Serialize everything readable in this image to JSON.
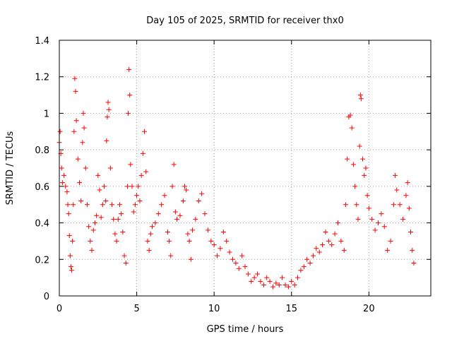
{
  "chart_data": {
    "type": "scatter",
    "title": "Day 105 of 2025, SRMTID for receiver thx0",
    "xlabel": "GPS time / hours",
    "ylabel": "SRMTID / TECUs",
    "xlim": [
      0,
      24
    ],
    "ylim": [
      0,
      1.4
    ],
    "x_ticks": [
      0,
      5,
      10,
      15,
      20
    ],
    "y_ticks": [
      0,
      0.2,
      0.4,
      0.6,
      0.8,
      1,
      1.2,
      1.4
    ],
    "x_tick_labels": [
      "0",
      "5",
      "10",
      "15",
      "20"
    ],
    "y_tick_labels": [
      "0",
      "0.2",
      "0.4",
      "0.6",
      "0.8",
      "1",
      "1.2",
      "1.4"
    ],
    "grid": true,
    "marker": "+",
    "color": "#ff0000",
    "series": [
      {
        "name": "SRMTID",
        "points": [
          [
            0.0,
            0.84
          ],
          [
            0.05,
            0.9
          ],
          [
            0.1,
            0.78
          ],
          [
            0.15,
            0.7
          ],
          [
            0.2,
            0.62
          ],
          [
            0.3,
            0.66
          ],
          [
            0.4,
            0.6
          ],
          [
            0.5,
            0.57
          ],
          [
            0.55,
            0.5
          ],
          [
            0.6,
            0.45
          ],
          [
            0.65,
            0.33
          ],
          [
            0.7,
            0.22
          ],
          [
            0.75,
            0.16
          ],
          [
            0.8,
            0.14
          ],
          [
            0.85,
            0.3
          ],
          [
            0.9,
            0.5
          ],
          [
            0.95,
            0.9
          ],
          [
            1.0,
            1.19
          ],
          [
            1.05,
            1.12
          ],
          [
            1.1,
            0.96
          ],
          [
            1.2,
            0.75
          ],
          [
            1.3,
            0.62
          ],
          [
            1.4,
            0.52
          ],
          [
            1.5,
            0.84
          ],
          [
            1.55,
            1.0
          ],
          [
            1.6,
            0.92
          ],
          [
            1.7,
            0.7
          ],
          [
            1.8,
            0.5
          ],
          [
            1.9,
            0.38
          ],
          [
            2.0,
            0.3
          ],
          [
            2.1,
            0.25
          ],
          [
            2.2,
            0.36
          ],
          [
            2.3,
            0.4
          ],
          [
            2.4,
            0.44
          ],
          [
            2.5,
            0.66
          ],
          [
            2.6,
            0.58
          ],
          [
            2.7,
            0.43
          ],
          [
            2.8,
            0.5
          ],
          [
            2.9,
            0.6
          ],
          [
            3.0,
            0.52
          ],
          [
            3.05,
            0.85
          ],
          [
            3.1,
            0.98
          ],
          [
            3.15,
            1.06
          ],
          [
            3.2,
            1.02
          ],
          [
            3.3,
            0.7
          ],
          [
            3.4,
            0.5
          ],
          [
            3.5,
            0.42
          ],
          [
            3.6,
            0.34
          ],
          [
            3.7,
            0.3
          ],
          [
            3.8,
            0.42
          ],
          [
            3.9,
            0.5
          ],
          [
            4.0,
            0.45
          ],
          [
            4.1,
            0.35
          ],
          [
            4.2,
            0.22
          ],
          [
            4.3,
            0.18
          ],
          [
            4.4,
            0.6
          ],
          [
            4.45,
            1.0
          ],
          [
            4.5,
            1.24
          ],
          [
            4.55,
            1.1
          ],
          [
            4.6,
            0.72
          ],
          [
            4.7,
            0.6
          ],
          [
            4.8,
            0.46
          ],
          [
            4.9,
            0.5
          ],
          [
            5.0,
            0.55
          ],
          [
            5.1,
            0.6
          ],
          [
            5.2,
            0.52
          ],
          [
            5.3,
            0.66
          ],
          [
            5.4,
            0.78
          ],
          [
            5.5,
            0.9
          ],
          [
            5.6,
            0.68
          ],
          [
            5.7,
            0.3
          ],
          [
            5.8,
            0.25
          ],
          [
            5.9,
            0.34
          ],
          [
            6.0,
            0.38
          ],
          [
            6.2,
            0.4
          ],
          [
            6.4,
            0.45
          ],
          [
            6.6,
            0.5
          ],
          [
            6.8,
            0.55
          ],
          [
            7.0,
            0.35
          ],
          [
            7.1,
            0.3
          ],
          [
            7.2,
            0.22
          ],
          [
            7.3,
            0.6
          ],
          [
            7.4,
            0.72
          ],
          [
            7.5,
            0.46
          ],
          [
            7.6,
            0.42
          ],
          [
            7.8,
            0.44
          ],
          [
            8.0,
            0.52
          ],
          [
            8.1,
            0.6
          ],
          [
            8.2,
            0.58
          ],
          [
            8.3,
            0.34
          ],
          [
            8.4,
            0.3
          ],
          [
            8.5,
            0.2
          ],
          [
            8.6,
            0.36
          ],
          [
            8.8,
            0.42
          ],
          [
            9.0,
            0.52
          ],
          [
            9.2,
            0.56
          ],
          [
            9.4,
            0.45
          ],
          [
            9.6,
            0.36
          ],
          [
            9.8,
            0.3
          ],
          [
            10.0,
            0.28
          ],
          [
            10.2,
            0.22
          ],
          [
            10.4,
            0.26
          ],
          [
            10.6,
            0.35
          ],
          [
            10.8,
            0.3
          ],
          [
            11.0,
            0.24
          ],
          [
            11.2,
            0.2
          ],
          [
            11.4,
            0.18
          ],
          [
            11.6,
            0.15
          ],
          [
            11.8,
            0.22
          ],
          [
            12.0,
            0.16
          ],
          [
            12.2,
            0.12
          ],
          [
            12.4,
            0.08
          ],
          [
            12.6,
            0.1
          ],
          [
            12.8,
            0.12
          ],
          [
            13.0,
            0.08
          ],
          [
            13.2,
            0.06
          ],
          [
            13.4,
            0.1
          ],
          [
            13.6,
            0.08
          ],
          [
            13.8,
            0.05
          ],
          [
            14.0,
            0.07
          ],
          [
            14.2,
            0.06
          ],
          [
            14.4,
            0.1
          ],
          [
            14.6,
            0.06
          ],
          [
            14.8,
            0.05
          ],
          [
            15.0,
            0.08
          ],
          [
            15.2,
            0.06
          ],
          [
            15.4,
            0.1
          ],
          [
            15.6,
            0.14
          ],
          [
            15.8,
            0.16
          ],
          [
            16.0,
            0.2
          ],
          [
            16.2,
            0.18
          ],
          [
            16.4,
            0.22
          ],
          [
            16.6,
            0.26
          ],
          [
            16.8,
            0.24
          ],
          [
            17.0,
            0.28
          ],
          [
            17.2,
            0.35
          ],
          [
            17.4,
            0.3
          ],
          [
            17.6,
            0.28
          ],
          [
            17.8,
            0.34
          ],
          [
            18.0,
            0.4
          ],
          [
            18.2,
            0.3
          ],
          [
            18.4,
            0.25
          ],
          [
            18.5,
            0.5
          ],
          [
            18.6,
            0.75
          ],
          [
            18.7,
            0.98
          ],
          [
            18.8,
            0.99
          ],
          [
            18.9,
            0.92
          ],
          [
            19.0,
            0.72
          ],
          [
            19.1,
            0.6
          ],
          [
            19.2,
            0.5
          ],
          [
            19.3,
            0.42
          ],
          [
            19.4,
            0.82
          ],
          [
            19.45,
            1.1
          ],
          [
            19.5,
            1.08
          ],
          [
            19.6,
            0.75
          ],
          [
            19.7,
            0.66
          ],
          [
            19.8,
            0.7
          ],
          [
            19.9,
            0.55
          ],
          [
            20.0,
            0.48
          ],
          [
            20.2,
            0.42
          ],
          [
            20.4,
            0.36
          ],
          [
            20.6,
            0.4
          ],
          [
            20.8,
            0.45
          ],
          [
            21.0,
            0.38
          ],
          [
            21.2,
            0.25
          ],
          [
            21.4,
            0.3
          ],
          [
            21.6,
            0.5
          ],
          [
            21.7,
            0.66
          ],
          [
            21.8,
            0.58
          ],
          [
            22.0,
            0.5
          ],
          [
            22.2,
            0.42
          ],
          [
            22.4,
            0.55
          ],
          [
            22.5,
            0.62
          ],
          [
            22.6,
            0.48
          ],
          [
            22.7,
            0.35
          ],
          [
            22.8,
            0.25
          ],
          [
            22.9,
            0.18
          ]
        ]
      }
    ]
  }
}
